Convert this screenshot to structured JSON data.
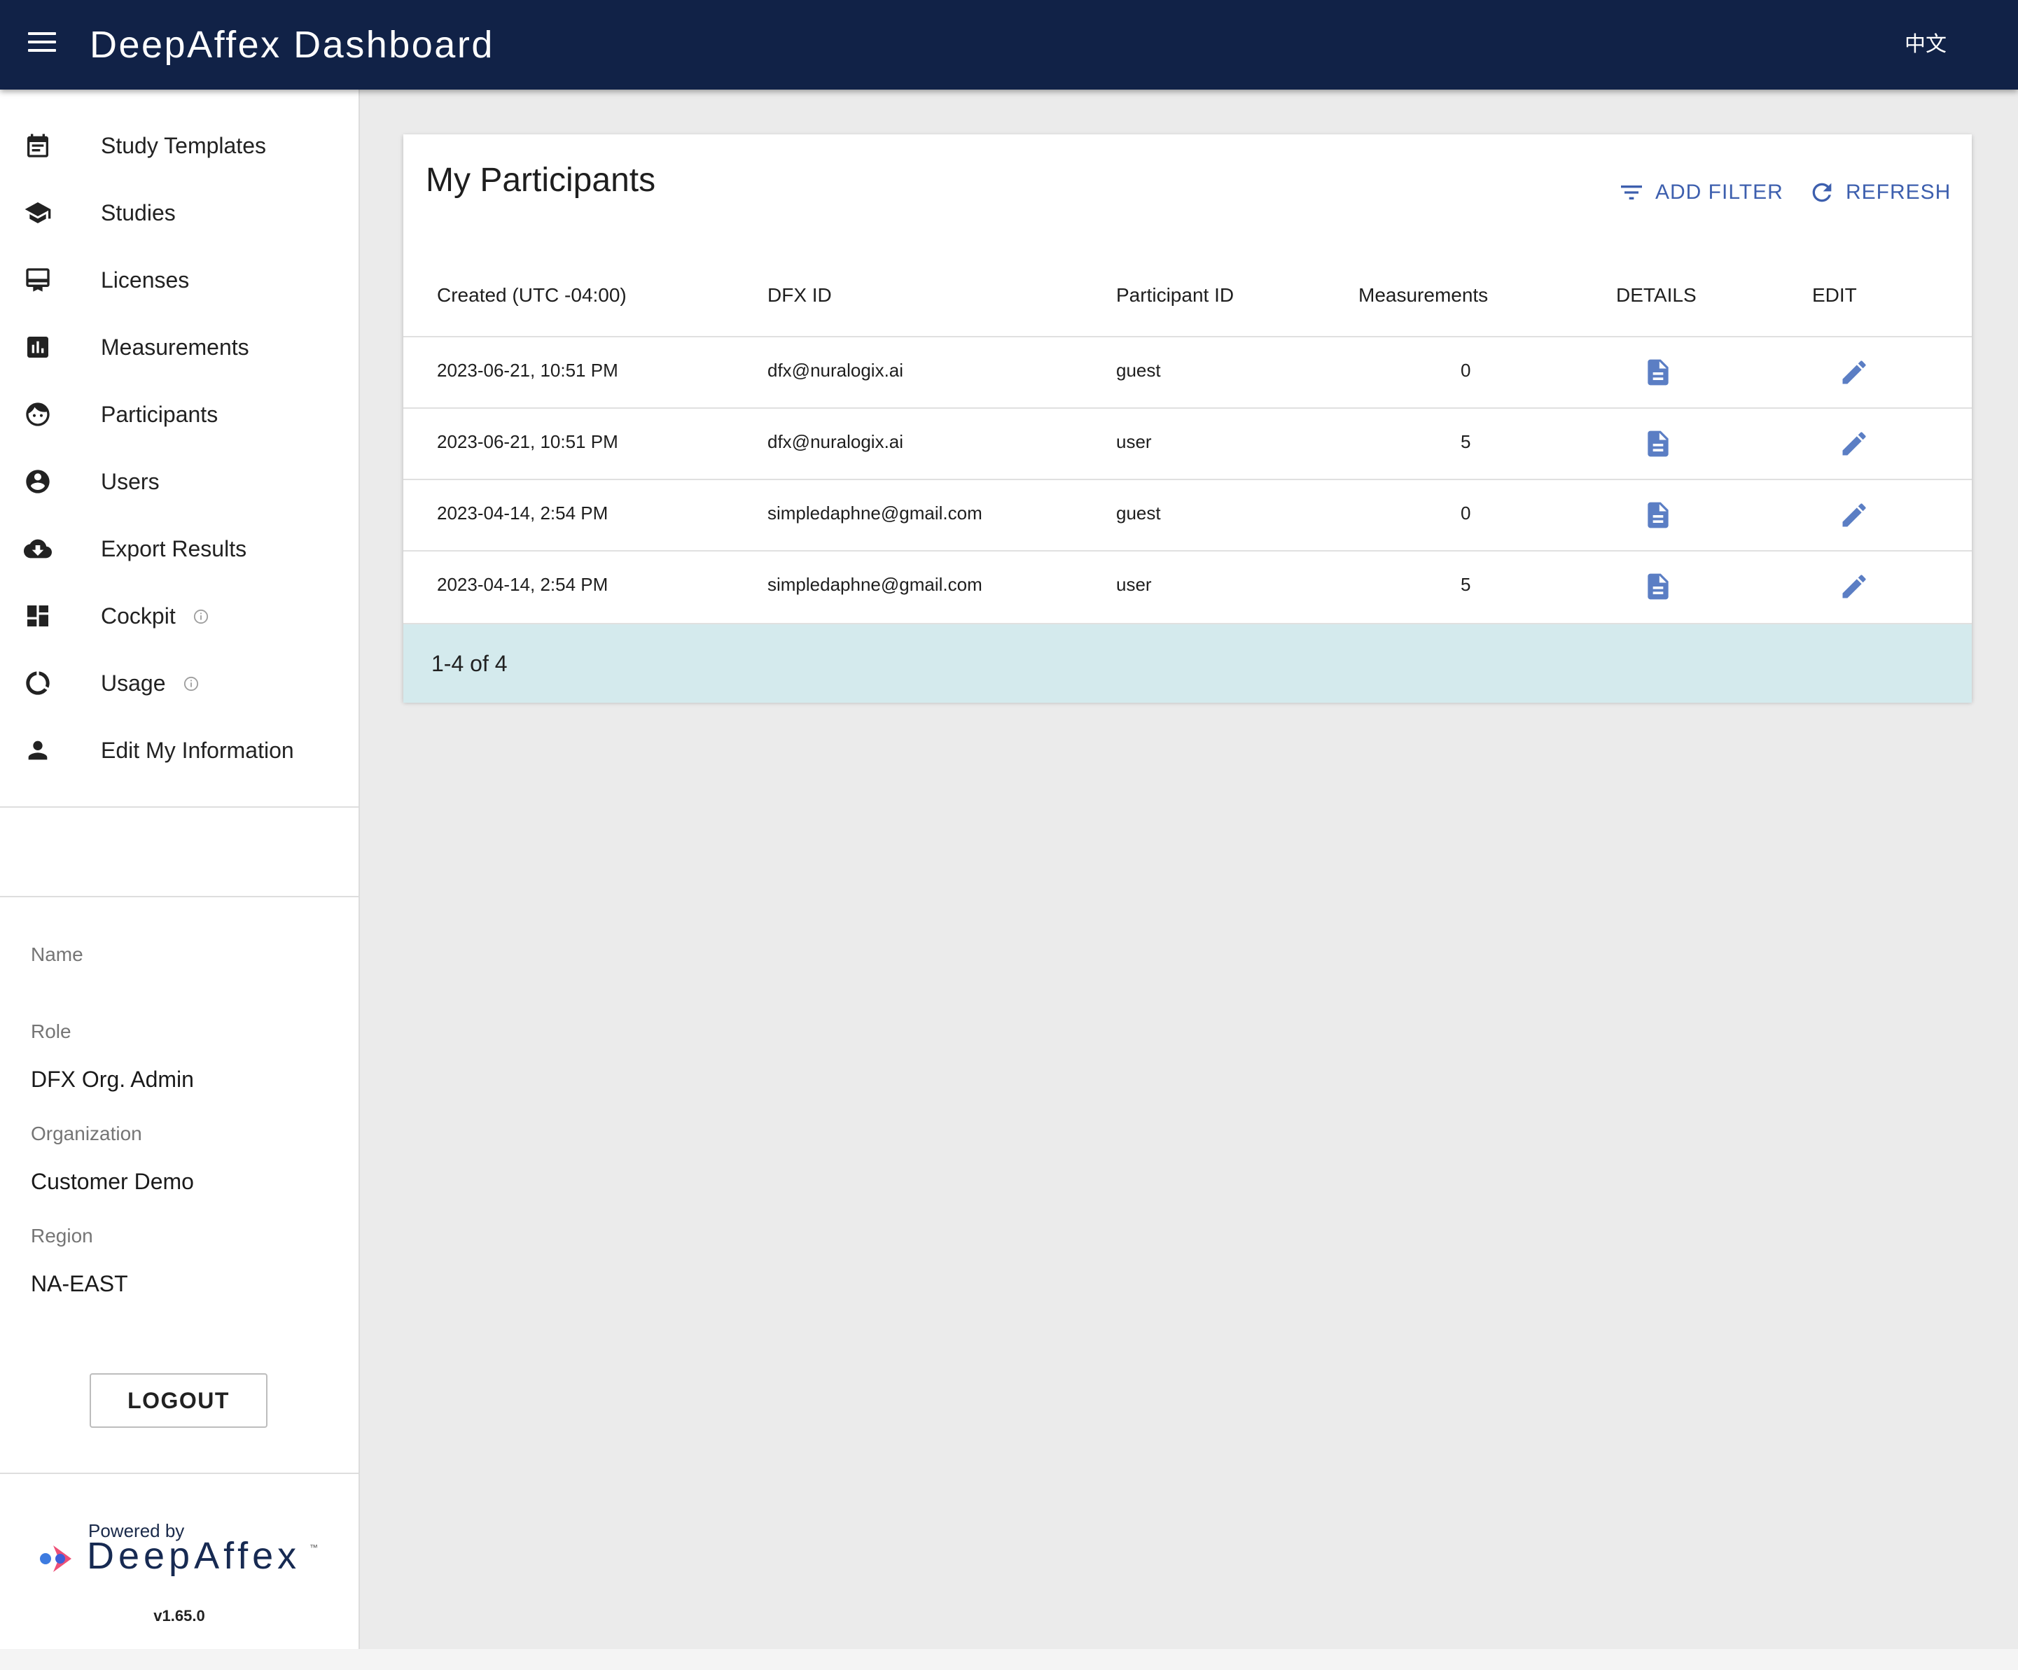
{
  "header": {
    "title": "DeepAffex Dashboard",
    "language": "中文"
  },
  "sidebar": {
    "items": [
      {
        "label": "Study Templates",
        "icon": "calendar-icon"
      },
      {
        "label": "Studies",
        "icon": "graduation-cap-icon"
      },
      {
        "label": "Licenses",
        "icon": "card-icon"
      },
      {
        "label": "Measurements",
        "icon": "bar-chart-icon"
      },
      {
        "label": "Participants",
        "icon": "face-icon"
      },
      {
        "label": "Users",
        "icon": "account-circle-icon"
      },
      {
        "label": "Export Results",
        "icon": "cloud-download-icon"
      },
      {
        "label": "Cockpit",
        "icon": "dashboard-icon"
      },
      {
        "label": "Usage",
        "icon": "donut-icon"
      },
      {
        "label": "Edit My Information",
        "icon": "person-icon"
      }
    ],
    "profile": {
      "name_label": "Name",
      "name_value": "",
      "role_label": "Role",
      "role_value": "DFX Org. Admin",
      "org_label": "Organization",
      "org_value": "Customer Demo",
      "region_label": "Region",
      "region_value": "NA-EAST"
    },
    "logout_label": "LOGOUT",
    "powered_by": "Powered by",
    "brand": "DeepAffex",
    "trademark": "™",
    "version": "v1.65.0"
  },
  "main": {
    "title": "My Participants",
    "add_filter_label": "ADD FILTER",
    "refresh_label": "REFRESH",
    "columns": [
      "Created (UTC -04:00)",
      "DFX ID",
      "Participant ID",
      "Measurements",
      "DETAILS",
      "EDIT"
    ],
    "rows": [
      {
        "created": "2023-06-21, 10:51 PM",
        "dfx_id": "dfx@nuralogix.ai",
        "participant_id": "guest",
        "measurements": "0"
      },
      {
        "created": "2023-06-21, 10:51 PM",
        "dfx_id": "dfx@nuralogix.ai",
        "participant_id": "user",
        "measurements": "5"
      },
      {
        "created": "2023-04-14, 2:54 PM",
        "dfx_id": "simpledaphne@gmail.com",
        "participant_id": "guest",
        "measurements": "0"
      },
      {
        "created": "2023-04-14, 2:54 PM",
        "dfx_id": "simpledaphne@gmail.com",
        "participant_id": "user",
        "measurements": "5"
      }
    ],
    "pagination": "1-4 of 4"
  },
  "colors": {
    "appbar": "#112247",
    "accent": "#3d5fae",
    "pager_bg": "#d4eaed"
  }
}
